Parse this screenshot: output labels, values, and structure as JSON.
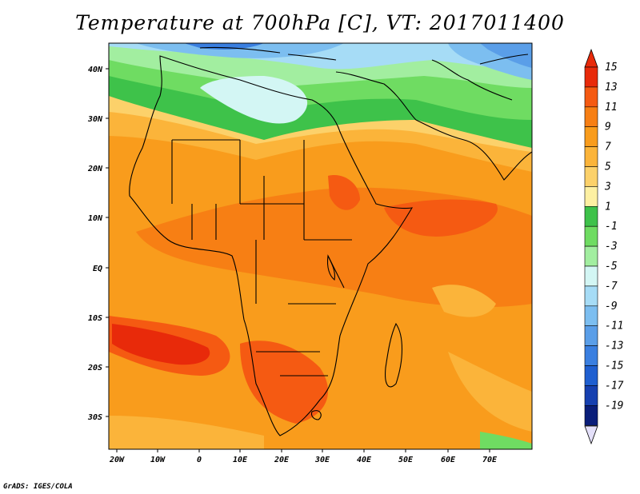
{
  "title": "Temperature at 700hPa [C], VT: 2017011400",
  "credit": "GrADS: IGES/COLA",
  "map": {
    "lat_labels": [
      "40N",
      "30N",
      "20N",
      "10N",
      "EQ",
      "10S",
      "20S",
      "30S"
    ],
    "lon_labels": [
      "20W",
      "10W",
      "0",
      "10E",
      "20E",
      "30E",
      "40E",
      "50E",
      "60E",
      "70E"
    ]
  },
  "colorbar": {
    "labels": [
      "15",
      "13",
      "11",
      "9",
      "7",
      "5",
      "3",
      "1",
      "-1",
      "-3",
      "-5",
      "-7",
      "-9",
      "-11",
      "-13",
      "-15",
      "-17",
      "-19"
    ],
    "colors": [
      "#e82a0a",
      "#f55a12",
      "#f77f14",
      "#f99c1c",
      "#fbb43a",
      "#fcd16a",
      "#fdf0a2",
      "#3ec24a",
      "#6fdc62",
      "#a2eea0",
      "#d3f6f4",
      "#a6dcf6",
      "#7cbef0",
      "#5a9ee8",
      "#3a7fe0",
      "#1f5fd0",
      "#1640b0",
      "#0a1e7a"
    ],
    "under_color": "#e4e0fa"
  }
}
